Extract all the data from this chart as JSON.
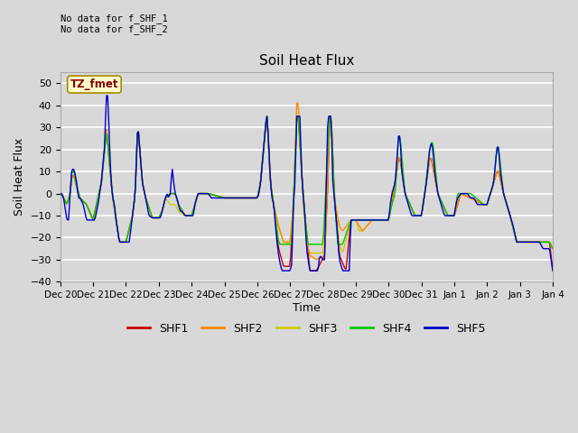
{
  "title": "Soil Heat Flux",
  "xlabel": "Time",
  "ylabel": "Soil Heat Flux",
  "ylim": [
    -40,
    55
  ],
  "yticks": [
    -40,
    -30,
    -20,
    -10,
    0,
    10,
    20,
    30,
    40,
    50
  ],
  "bg_color": "#d8d8d8",
  "grid_color": "#ffffff",
  "annotation_text": "No data for f_SHF_1\nNo data for f_SHF_2",
  "tz_label": "TZ_fmet",
  "colors": {
    "SHF1": "#cc0000",
    "SHF2": "#ff8800",
    "SHF3": "#cccc00",
    "SHF4": "#00cc00",
    "SHF5": "#0000cc"
  },
  "x_tick_labels": [
    "Dec 20",
    "Dec 21",
    "Dec 22",
    "Dec 23",
    "Dec 24",
    "Dec 25",
    "Dec 26",
    "Dec 27",
    "Dec 28",
    "Dec 29",
    "Dec 30",
    "Dec 31",
    "Jan 1",
    "Jan 2",
    "Jan 3",
    "Jan 4"
  ],
  "num_points": 480
}
